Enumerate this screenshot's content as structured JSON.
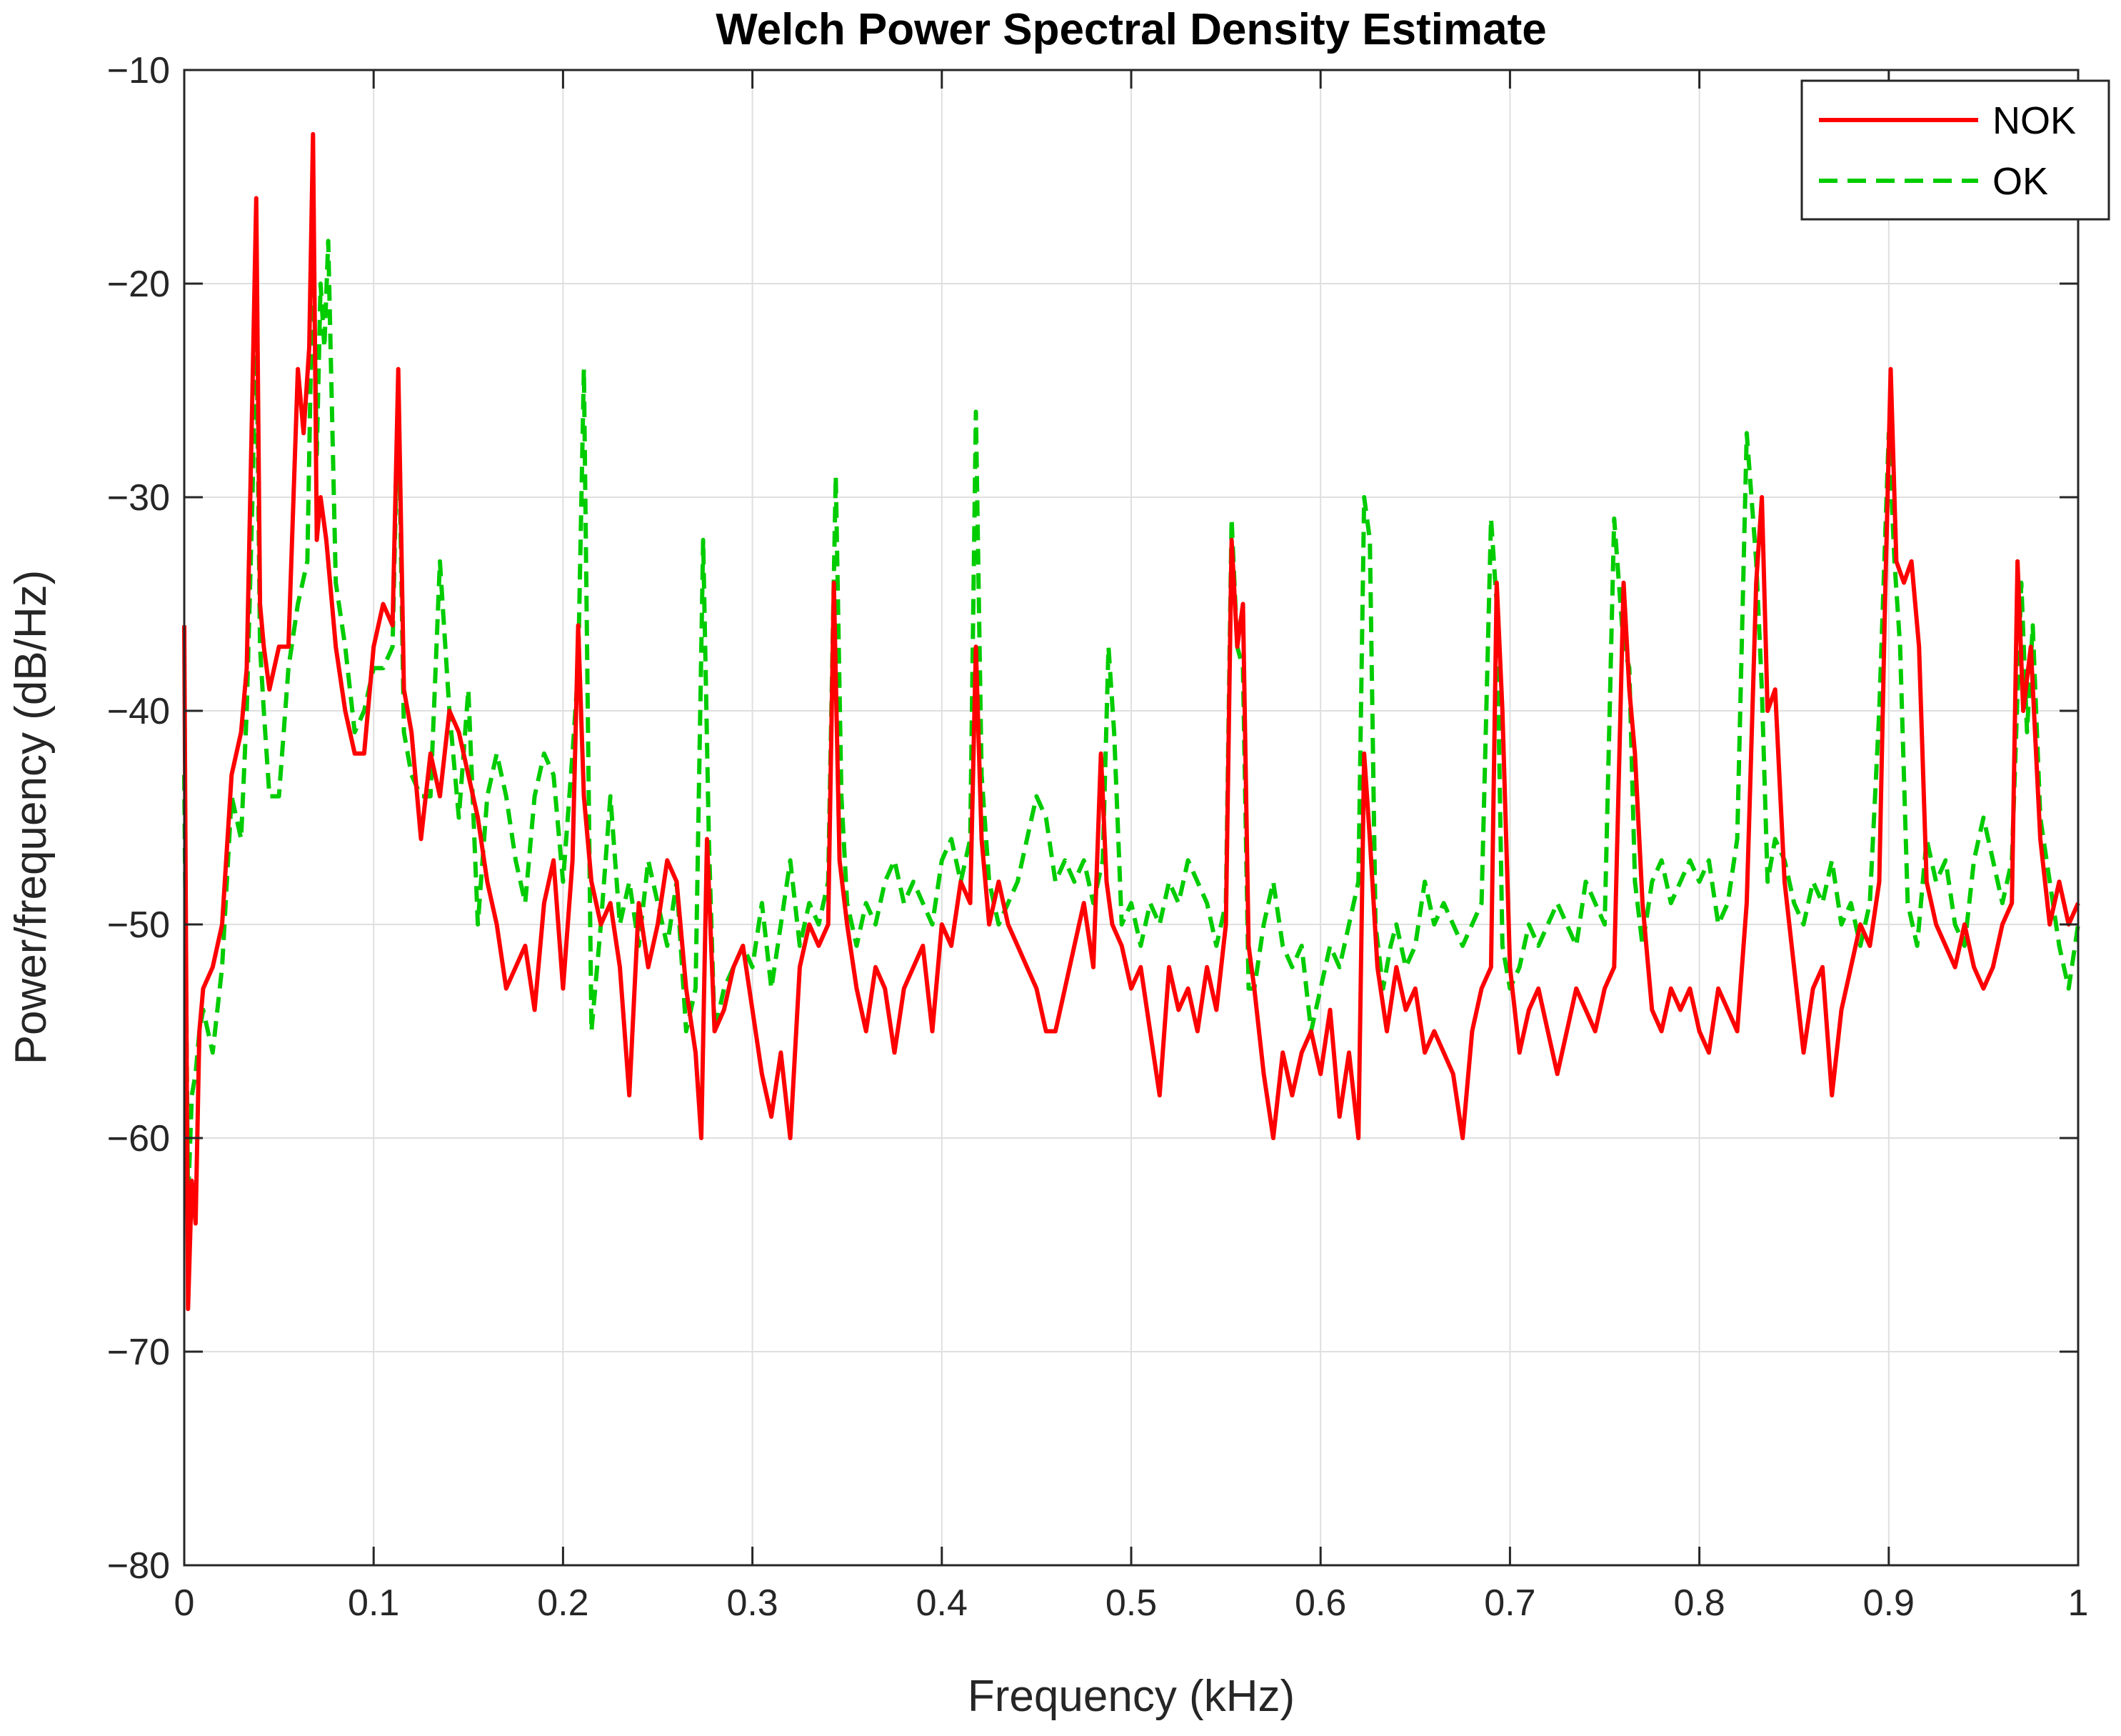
{
  "chart_data": {
    "type": "line",
    "title": "Welch Power Spectral Density Estimate",
    "xlabel": "Frequency (kHz)",
    "ylabel": "Power/frequency (dB/Hz)",
    "xlim": [
      0,
      1
    ],
    "ylim": [
      -80,
      -10
    ],
    "xticks": [
      0,
      0.1,
      0.2,
      0.3,
      0.4,
      0.5,
      0.6,
      0.7,
      0.8,
      0.9,
      1
    ],
    "xtick_labels": [
      "0",
      "0.1",
      "0.2",
      "0.3",
      "0.4",
      "0.5",
      "0.6",
      "0.7",
      "0.8",
      "0.9",
      "1"
    ],
    "yticks": [
      -80,
      -70,
      -60,
      -50,
      -40,
      -30,
      -20,
      -10
    ],
    "ytick_labels": [
      "−80",
      "−70",
      "−60",
      "−50",
      "−40",
      "−30",
      "−20",
      "−10"
    ],
    "grid": true,
    "legend_position": "top-right",
    "series": [
      {
        "name": "NOK",
        "color": "#ff0000",
        "style": "solid",
        "x": [
          0,
          0.002,
          0.004,
          0.006,
          0.008,
          0.01,
          0.015,
          0.02,
          0.025,
          0.03,
          0.033,
          0.036,
          0.038,
          0.04,
          0.042,
          0.045,
          0.05,
          0.055,
          0.06,
          0.063,
          0.066,
          0.068,
          0.07,
          0.072,
          0.075,
          0.08,
          0.085,
          0.09,
          0.095,
          0.1,
          0.105,
          0.11,
          0.113,
          0.116,
          0.12,
          0.125,
          0.13,
          0.135,
          0.14,
          0.145,
          0.15,
          0.155,
          0.16,
          0.165,
          0.17,
          0.175,
          0.18,
          0.185,
          0.19,
          0.195,
          0.2,
          0.205,
          0.208,
          0.211,
          0.215,
          0.22,
          0.225,
          0.23,
          0.235,
          0.24,
          0.245,
          0.25,
          0.255,
          0.26,
          0.265,
          0.27,
          0.273,
          0.276,
          0.28,
          0.285,
          0.29,
          0.295,
          0.3,
          0.305,
          0.31,
          0.315,
          0.32,
          0.325,
          0.33,
          0.335,
          0.34,
          0.343,
          0.346,
          0.35,
          0.355,
          0.36,
          0.365,
          0.37,
          0.375,
          0.38,
          0.385,
          0.39,
          0.395,
          0.4,
          0.405,
          0.41,
          0.415,
          0.418,
          0.421,
          0.425,
          0.43,
          0.435,
          0.44,
          0.445,
          0.45,
          0.455,
          0.46,
          0.465,
          0.47,
          0.475,
          0.48,
          0.484,
          0.487,
          0.49,
          0.495,
          0.5,
          0.505,
          0.51,
          0.515,
          0.52,
          0.525,
          0.53,
          0.535,
          0.54,
          0.545,
          0.55,
          0.553,
          0.556,
          0.559,
          0.562,
          0.565,
          0.57,
          0.575,
          0.58,
          0.585,
          0.59,
          0.595,
          0.6,
          0.605,
          0.61,
          0.615,
          0.62,
          0.623,
          0.626,
          0.63,
          0.635,
          0.64,
          0.645,
          0.65,
          0.655,
          0.66,
          0.665,
          0.67,
          0.675,
          0.68,
          0.685,
          0.69,
          0.693,
          0.696,
          0.7,
          0.705,
          0.71,
          0.715,
          0.72,
          0.725,
          0.73,
          0.735,
          0.74,
          0.745,
          0.75,
          0.755,
          0.76,
          0.763,
          0.766,
          0.77,
          0.775,
          0.78,
          0.785,
          0.79,
          0.795,
          0.8,
          0.805,
          0.81,
          0.815,
          0.82,
          0.825,
          0.83,
          0.833,
          0.836,
          0.84,
          0.845,
          0.85,
          0.855,
          0.86,
          0.865,
          0.87,
          0.875,
          0.88,
          0.885,
          0.89,
          0.895,
          0.898,
          0.901,
          0.904,
          0.908,
          0.912,
          0.916,
          0.92,
          0.925,
          0.93,
          0.935,
          0.94,
          0.945,
          0.95,
          0.955,
          0.96,
          0.965,
          0.968,
          0.971,
          0.975,
          0.98,
          0.985,
          0.99,
          0.995,
          1
        ],
        "y": [
          -36,
          -68,
          -62,
          -64,
          -55,
          -53,
          -52,
          -50,
          -43,
          -41,
          -38,
          -25,
          -16,
          -35,
          -37,
          -39,
          -37,
          -37,
          -24,
          -27,
          -23,
          -13,
          -32,
          -30,
          -32,
          -37,
          -40,
          -42,
          -42,
          -37,
          -35,
          -36,
          -24,
          -39,
          -41,
          -46,
          -42,
          -44,
          -40,
          -41,
          -43,
          -45,
          -48,
          -50,
          -53,
          -52,
          -51,
          -54,
          -49,
          -47,
          -53,
          -47,
          -36,
          -44,
          -48,
          -50,
          -49,
          -52,
          -58,
          -49,
          -52,
          -50,
          -47,
          -48,
          -53,
          -56,
          -60,
          -46,
          -55,
          -54,
          -52,
          -51,
          -54,
          -57,
          -59,
          -56,
          -60,
          -52,
          -50,
          -51,
          -50,
          -34,
          -47,
          -50,
          -53,
          -55,
          -52,
          -53,
          -56,
          -53,
          -52,
          -51,
          -55,
          -50,
          -51,
          -48,
          -49,
          -37,
          -46,
          -50,
          -48,
          -50,
          -51,
          -52,
          -53,
          -55,
          -55,
          -53,
          -51,
          -49,
          -52,
          -42,
          -48,
          -50,
          -51,
          -53,
          -52,
          -55,
          -58,
          -52,
          -54,
          -53,
          -55,
          -52,
          -54,
          -50,
          -32,
          -37,
          -35,
          -51,
          -53,
          -57,
          -60,
          -56,
          -58,
          -56,
          -55,
          -57,
          -54,
          -59,
          -56,
          -60,
          -42,
          -46,
          -52,
          -55,
          -52,
          -54,
          -53,
          -56,
          -55,
          -56,
          -57,
          -60,
          -55,
          -53,
          -52,
          -34,
          -40,
          -52,
          -56,
          -54,
          -53,
          -55,
          -57,
          -55,
          -53,
          -54,
          -55,
          -53,
          -52,
          -34,
          -39,
          -42,
          -49,
          -54,
          -55,
          -53,
          -54,
          -53,
          -55,
          -56,
          -53,
          -54,
          -55,
          -49,
          -34,
          -30,
          -40,
          -39,
          -48,
          -52,
          -56,
          -53,
          -52,
          -58,
          -54,
          -52,
          -50,
          -51,
          -48,
          -35,
          -24,
          -33,
          -34,
          -33,
          -37,
          -48,
          -50,
          -51,
          -52,
          -50,
          -52,
          -53,
          -52,
          -50,
          -49,
          -33,
          -40,
          -37,
          -46,
          -50,
          -48,
          -50,
          -49
        ]
      },
      {
        "name": "OK",
        "color": "#00cc00",
        "style": "dashed",
        "x": [
          0,
          0.002,
          0.004,
          0.006,
          0.008,
          0.01,
          0.015,
          0.02,
          0.025,
          0.03,
          0.033,
          0.036,
          0.038,
          0.04,
          0.042,
          0.045,
          0.05,
          0.055,
          0.06,
          0.065,
          0.068,
          0.07,
          0.072,
          0.074,
          0.076,
          0.08,
          0.085,
          0.09,
          0.095,
          0.1,
          0.105,
          0.11,
          0.113,
          0.116,
          0.12,
          0.125,
          0.13,
          0.135,
          0.14,
          0.145,
          0.15,
          0.155,
          0.16,
          0.165,
          0.17,
          0.175,
          0.18,
          0.185,
          0.19,
          0.195,
          0.2,
          0.205,
          0.208,
          0.211,
          0.215,
          0.22,
          0.225,
          0.23,
          0.235,
          0.24,
          0.245,
          0.25,
          0.255,
          0.26,
          0.265,
          0.27,
          0.274,
          0.277,
          0.28,
          0.285,
          0.29,
          0.295,
          0.3,
          0.305,
          0.31,
          0.315,
          0.32,
          0.325,
          0.33,
          0.335,
          0.34,
          0.344,
          0.347,
          0.35,
          0.355,
          0.36,
          0.365,
          0.37,
          0.375,
          0.38,
          0.385,
          0.39,
          0.395,
          0.4,
          0.405,
          0.41,
          0.415,
          0.418,
          0.421,
          0.425,
          0.43,
          0.435,
          0.44,
          0.445,
          0.45,
          0.455,
          0.46,
          0.465,
          0.47,
          0.475,
          0.48,
          0.485,
          0.488,
          0.491,
          0.495,
          0.5,
          0.505,
          0.51,
          0.515,
          0.52,
          0.525,
          0.53,
          0.535,
          0.54,
          0.545,
          0.55,
          0.553,
          0.556,
          0.559,
          0.562,
          0.565,
          0.57,
          0.575,
          0.58,
          0.585,
          0.59,
          0.595,
          0.6,
          0.605,
          0.61,
          0.615,
          0.62,
          0.623,
          0.626,
          0.629,
          0.633,
          0.637,
          0.64,
          0.645,
          0.65,
          0.655,
          0.66,
          0.665,
          0.67,
          0.675,
          0.68,
          0.685,
          0.69,
          0.693,
          0.696,
          0.7,
          0.705,
          0.71,
          0.715,
          0.72,
          0.725,
          0.73,
          0.735,
          0.74,
          0.745,
          0.75,
          0.755,
          0.76,
          0.763,
          0.766,
          0.77,
          0.775,
          0.78,
          0.785,
          0.79,
          0.795,
          0.8,
          0.805,
          0.81,
          0.815,
          0.82,
          0.825,
          0.83,
          0.833,
          0.836,
          0.84,
          0.845,
          0.85,
          0.855,
          0.86,
          0.865,
          0.87,
          0.875,
          0.88,
          0.885,
          0.89,
          0.895,
          0.9,
          0.903,
          0.906,
          0.91,
          0.915,
          0.92,
          0.925,
          0.93,
          0.935,
          0.94,
          0.945,
          0.95,
          0.955,
          0.96,
          0.965,
          0.97,
          0.973,
          0.976,
          0.98,
          0.985,
          0.99,
          0.995,
          1
        ],
        "y": [
          -43,
          -63,
          -58,
          -57,
          -55,
          -54,
          -56,
          -52,
          -44,
          -46,
          -40,
          -30,
          -21,
          -37,
          -40,
          -44,
          -44,
          -38,
          -35,
          -33,
          -18,
          -28,
          -20,
          -23,
          -18,
          -34,
          -37,
          -41,
          -40,
          -38,
          -38,
          -37,
          -25,
          -41,
          -43,
          -44,
          -44,
          -33,
          -40,
          -45,
          -39,
          -50,
          -44,
          -42,
          -44,
          -47,
          -49,
          -44,
          -42,
          -43,
          -48,
          -42,
          -38,
          -24,
          -55,
          -50,
          -44,
          -50,
          -48,
          -51,
          -47,
          -49,
          -51,
          -48,
          -55,
          -53,
          -32,
          -46,
          -55,
          -53,
          -52,
          -51,
          -52,
          -49,
          -53,
          -50,
          -47,
          -51,
          -49,
          -50,
          -48,
          -29,
          -44,
          -49,
          -51,
          -49,
          -50,
          -48,
          -47,
          -49,
          -48,
          -49,
          -50,
          -47,
          -46,
          -48,
          -46,
          -26,
          -43,
          -48,
          -50,
          -49,
          -48,
          -46,
          -44,
          -45,
          -48,
          -47,
          -48,
          -47,
          -49,
          -47,
          -37,
          -41,
          -50,
          -49,
          -51,
          -49,
          -50,
          -48,
          -49,
          -47,
          -48,
          -49,
          -51,
          -49,
          -31,
          -37,
          -38,
          -53,
          -53,
          -50,
          -48,
          -51,
          -52,
          -51,
          -55,
          -53,
          -51,
          -52,
          -50,
          -48,
          -30,
          -32,
          -50,
          -53,
          -51,
          -50,
          -52,
          -51,
          -48,
          -50,
          -49,
          -50,
          -51,
          -50,
          -49,
          -31,
          -35,
          -51,
          -53,
          -52,
          -50,
          -51,
          -50,
          -49,
          -50,
          -51,
          -48,
          -49,
          -50,
          -31,
          -37,
          -38,
          -48,
          -51,
          -48,
          -47,
          -49,
          -48,
          -47,
          -48,
          -47,
          -50,
          -49,
          -46,
          -27,
          -33,
          -39,
          -48,
          -46,
          -47,
          -49,
          -50,
          -48,
          -49,
          -47,
          -50,
          -49,
          -51,
          -49,
          -40,
          -27,
          -33,
          -37,
          -49,
          -51,
          -46,
          -48,
          -47,
          -50,
          -51,
          -47,
          -45,
          -47,
          -49,
          -47,
          -34,
          -41,
          -36,
          -45,
          -48,
          -51,
          -53,
          -50
        ]
      }
    ]
  }
}
